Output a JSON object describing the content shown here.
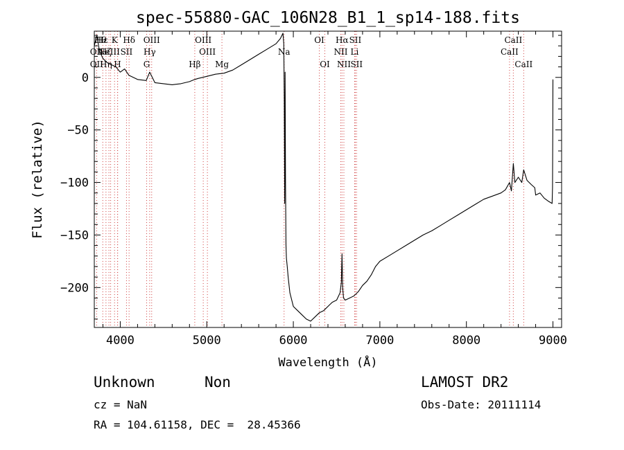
{
  "chart_data": {
    "type": "line",
    "title": "spec-55880-GAC_106N28_B1_1_sp14-188.fits",
    "xlabel": "Wavelength (Å)",
    "ylabel": "Flux (relative)",
    "xlim": [
      3700,
      9100
    ],
    "ylim": [
      -238,
      44
    ],
    "xticks": [
      4000,
      5000,
      6000,
      7000,
      8000,
      9000
    ],
    "yticks": [
      0,
      -50,
      -100,
      -150,
      -200
    ],
    "x_tick_labels": [
      "4000",
      "5000",
      "6000",
      "7000",
      "8000",
      "9000"
    ],
    "y_tick_labels": [
      "0",
      "−50",
      "−100",
      "−150",
      "−200"
    ],
    "grid": false,
    "series": [
      {
        "x": [
          3700,
          3730,
          3760,
          3800,
          3850,
          3900,
          3950,
          4000,
          4050,
          4100,
          4150,
          4200,
          4300,
          4340,
          4400,
          4500,
          4600,
          4700,
          4800,
          4860,
          4900,
          5000,
          5100,
          5200,
          5300,
          5400,
          5500,
          5600,
          5700,
          5800,
          5850,
          5880,
          5890,
          5895,
          5900,
          5905,
          5910,
          5915,
          5920,
          5930,
          5940,
          5960,
          6000,
          6050,
          6100,
          6150,
          6200,
          6250,
          6300,
          6350,
          6400,
          6450,
          6500,
          6540,
          6555,
          6563,
          6570,
          6580,
          6600,
          6650,
          6700,
          6750,
          6800,
          6850,
          6900,
          6950,
          7000,
          7100,
          7200,
          7300,
          7400,
          7500,
          7600,
          7700,
          7800,
          7900,
          8000,
          8100,
          8200,
          8300,
          8400,
          8450,
          8498,
          8520,
          8542,
          8560,
          8600,
          8640,
          8662,
          8700,
          8750,
          8790,
          8800,
          8850,
          8900,
          8950,
          8990,
          8995,
          8998,
          9000
        ],
        "y": [
          30,
          40,
          25,
          18,
          14,
          12,
          10,
          5,
          8,
          2,
          0,
          -2,
          -3,
          5,
          -5,
          -6,
          -7,
          -6,
          -4,
          -2,
          -1,
          1,
          3,
          4,
          7,
          12,
          17,
          22,
          27,
          32,
          37,
          42,
          32,
          -20,
          -120,
          5,
          -100,
          -160,
          -172,
          -180,
          -190,
          -205,
          -218,
          -222,
          -226,
          -230,
          -232,
          -228,
          -224,
          -222,
          -218,
          -214,
          -212,
          -205,
          -195,
          -168,
          -200,
          -210,
          -212,
          -210,
          -208,
          -204,
          -198,
          -194,
          -188,
          -180,
          -175,
          -170,
          -165,
          -160,
          -155,
          -150,
          -146,
          -141,
          -136,
          -131,
          -126,
          -121,
          -116,
          -113,
          -110,
          -107,
          -100,
          -108,
          -82,
          -100,
          -95,
          -100,
          -88,
          -98,
          -102,
          -105,
          -112,
          -110,
          -115,
          -118,
          -120,
          -105,
          -50,
          -2
        ]
      }
    ],
    "lines": [
      {
        "label": "OII",
        "x": 3727
      },
      {
        "label": "Hθ",
        "x": 3798
      },
      {
        "label": "Hη",
        "x": 3835
      },
      {
        "label": "NeIII",
        "x": 3869
      },
      {
        "label": "Hζ",
        "x": 3889
      },
      {
        "label": "K",
        "x": 3934
      },
      {
        "label": "H",
        "x": 3968
      },
      {
        "label": "Hε",
        "x": 3970
      },
      {
        "label": "Hδ",
        "x": 4102
      },
      {
        "label": "SII",
        "x": 4072
      },
      {
        "label": "Hγ",
        "x": 4340
      },
      {
        "label": "G",
        "x": 4305
      },
      {
        "label": "OIII",
        "x": 4363
      },
      {
        "label": "Hβ",
        "x": 4861
      },
      {
        "label": "OIII",
        "x": 4959
      },
      {
        "label": "OIII",
        "x": 5007
      },
      {
        "label": "Mg",
        "x": 5175
      },
      {
        "label": "Na",
        "x": 5893
      },
      {
        "label": "OI",
        "x": 6300
      },
      {
        "label": "OI",
        "x": 6364
      },
      {
        "label": "NII",
        "x": 6548
      },
      {
        "label": "Hα",
        "x": 6563
      },
      {
        "label": "NII",
        "x": 6584
      },
      {
        "label": "SII",
        "x": 6716
      },
      {
        "label": "Li",
        "x": 6708
      },
      {
        "label": "SII",
        "x": 6731
      },
      {
        "label": "CaII",
        "x": 8498
      },
      {
        "label": "CaII",
        "x": 8542
      },
      {
        "label": "CaII",
        "x": 8662
      }
    ],
    "line_labels": [
      {
        "text": "Hθ",
        "x": 3770,
        "row": 1
      },
      {
        "text": "Hε",
        "x": 3790,
        "row": 1
      },
      {
        "text": "K",
        "x": 3934,
        "row": 1
      },
      {
        "text": "Hδ",
        "x": 4102,
        "row": 1
      },
      {
        "text": "OIII",
        "x": 4363,
        "row": 1
      },
      {
        "text": "OIII",
        "x": 4959,
        "row": 1
      },
      {
        "text": "OI",
        "x": 6300,
        "row": 1
      },
      {
        "text": "Hα",
        "x": 6563,
        "row": 1
      },
      {
        "text": "SII",
        "x": 6716,
        "row": 1
      },
      {
        "text": "CaII",
        "x": 8542,
        "row": 1
      },
      {
        "text": "OII",
        "x": 3727,
        "row": 2
      },
      {
        "text": "Hζ",
        "x": 3830,
        "row": 2
      },
      {
        "text": "NeIII",
        "x": 3869,
        "row": 2
      },
      {
        "text": "SII",
        "x": 4072,
        "row": 2
      },
      {
        "text": "Hγ",
        "x": 4340,
        "row": 2
      },
      {
        "text": "OIII",
        "x": 5007,
        "row": 2
      },
      {
        "text": "Na",
        "x": 5893,
        "row": 2
      },
      {
        "text": "NII",
        "x": 6548,
        "row": 2
      },
      {
        "text": "Li",
        "x": 6708,
        "row": 2
      },
      {
        "text": "CaII",
        "x": 8498,
        "row": 2
      },
      {
        "text": "OII",
        "x": 3727,
        "row": 3
      },
      {
        "text": "Hη",
        "x": 3835,
        "row": 3
      },
      {
        "text": "H",
        "x": 3968,
        "row": 3
      },
      {
        "text": "G",
        "x": 4305,
        "row": 3
      },
      {
        "text": "Hβ",
        "x": 4861,
        "row": 3
      },
      {
        "text": "Mg",
        "x": 5175,
        "row": 3
      },
      {
        "text": "OI",
        "x": 6364,
        "row": 3
      },
      {
        "text": "NII",
        "x": 6584,
        "row": 3
      },
      {
        "text": "SII",
        "x": 6731,
        "row": 3
      },
      {
        "text": "CaII",
        "x": 8662,
        "row": 3
      }
    ]
  },
  "info": {
    "obj_class": "Unknown",
    "obj_subclass": "Non",
    "survey": "LAMOST DR2",
    "cz": "cz = NaN",
    "obs_date": "Obs-Date: 20111114",
    "radec": "RA = 104.61158, DEC =  28.45366"
  },
  "colors": {
    "spectrum": "#000000",
    "line_markers": "#d04040",
    "axes": "#000000"
  }
}
